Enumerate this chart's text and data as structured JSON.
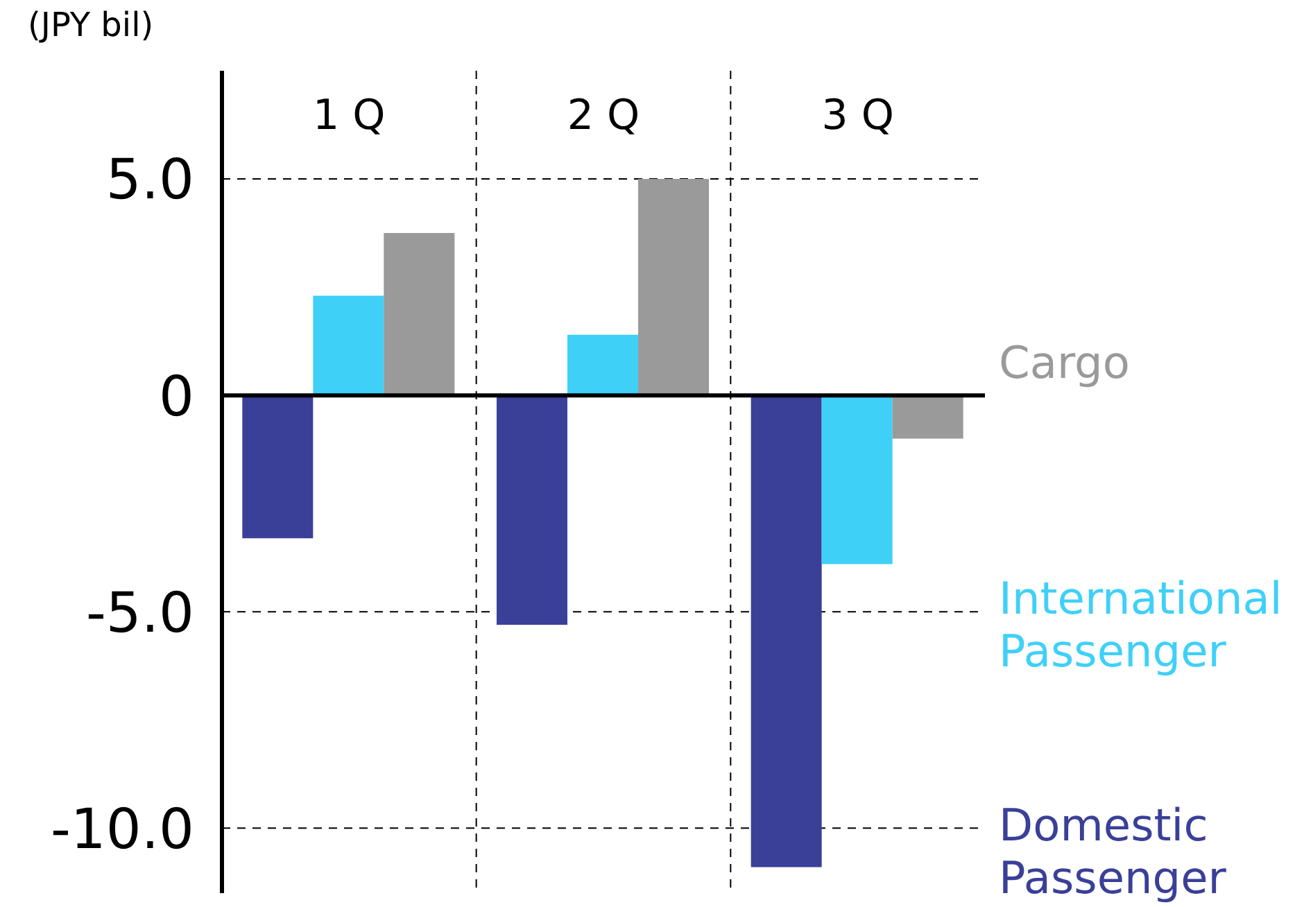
{
  "chart_data": {
    "type": "bar",
    "ylabel": "(JPY bil)",
    "categories": [
      "1 Q",
      "2 Q",
      "3 Q"
    ],
    "series": [
      {
        "name": "Domestic Passenger",
        "color": "#3a3f98",
        "values": [
          -3.3,
          -5.3,
          -10.9
        ]
      },
      {
        "name": "International Passenger",
        "color": "#3fd0f8",
        "values": [
          2.3,
          1.4,
          -3.9
        ]
      },
      {
        "name": "Cargo",
        "color": "#9a9a9a",
        "values": [
          3.75,
          5.0,
          -1.0
        ]
      }
    ],
    "ylim": [
      -11.5,
      7.5
    ],
    "yticks": [
      {
        "value": 5,
        "label": "5.0"
      },
      0,
      {
        "value": -5,
        "label": "-5.0"
      },
      {
        "value": -10,
        "label": "-10.0"
      }
    ],
    "grid": true,
    "legend": false
  }
}
